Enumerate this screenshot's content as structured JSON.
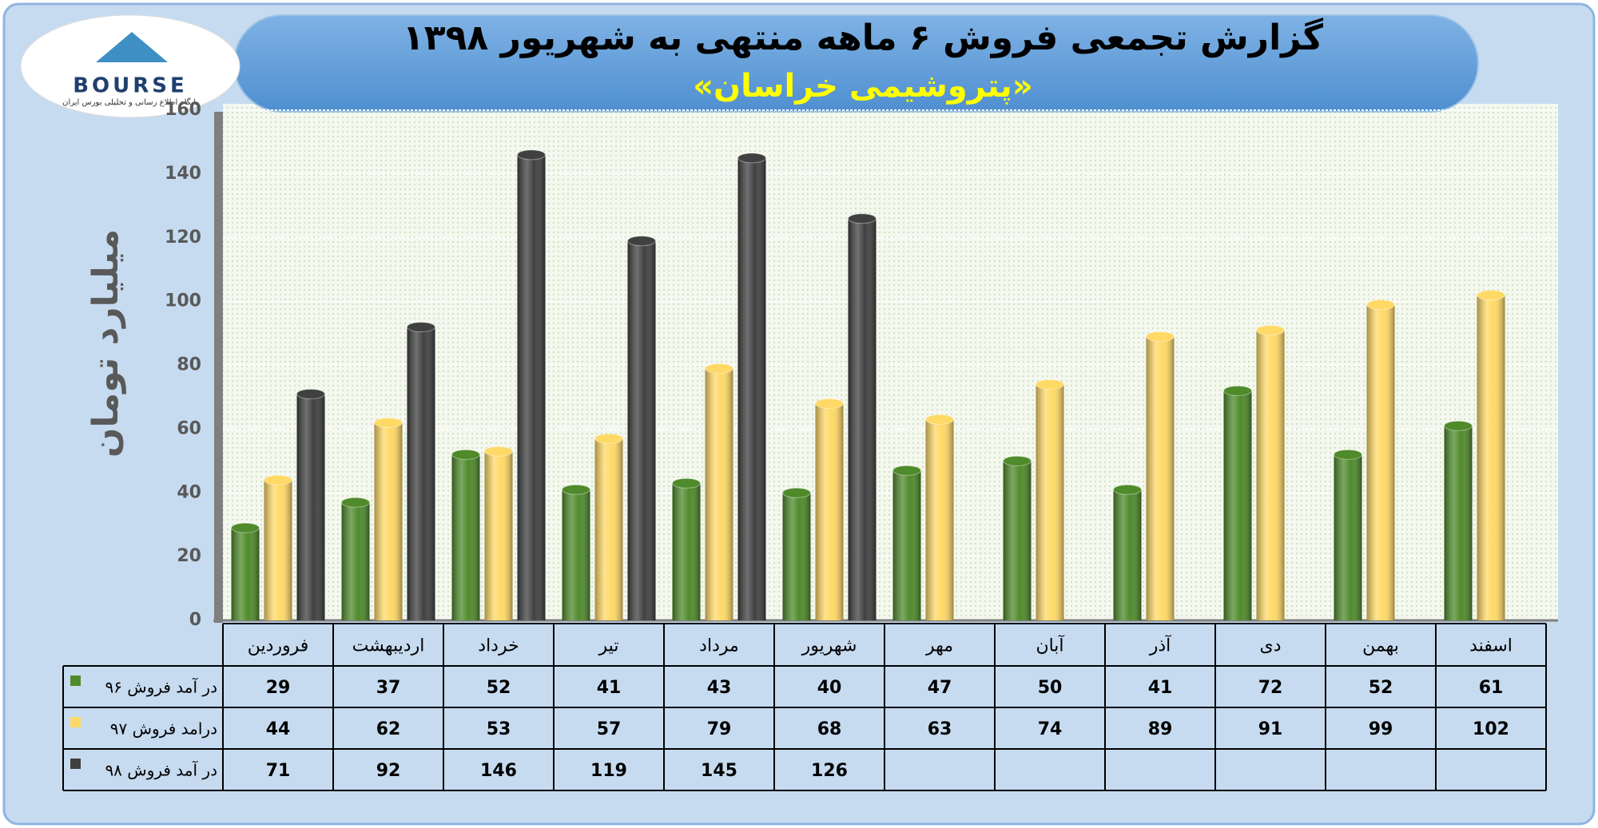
{
  "chart_data": {
    "type": "bar",
    "title": "گزارش تجمعی فروش ۶ ماهه منتهی به شهریور ۱۳۹۸",
    "subtitle": "«پتروشیمی خراسان»",
    "y_label": "میلیارد تومان",
    "logo": {
      "name": "BOURSE",
      "tagline": "پایگاه اطلاع رسانی و تحلیلی بورس ایران"
    },
    "categories": [
      "فروردین",
      "اردیبهشت",
      "خرداد",
      "تیر",
      "مرداد",
      "شهریور",
      "مهر",
      "آبان",
      "آذر",
      "دی",
      "بهمن",
      "اسفند"
    ],
    "series": [
      {
        "name": "در آمد فروش ۹۶",
        "color": "#4f8a2b",
        "values": [
          29,
          37,
          52,
          41,
          43,
          40,
          47,
          50,
          41,
          72,
          52,
          61
        ]
      },
      {
        "name": "درامد فروش ۹۷",
        "color": "#ffd966",
        "values": [
          44,
          62,
          53,
          57,
          79,
          68,
          63,
          74,
          89,
          91,
          99,
          102
        ]
      },
      {
        "name": "در آمد فروش ۹۸",
        "color": "#404040",
        "values": [
          71,
          92,
          146,
          119,
          145,
          126,
          null,
          null,
          null,
          null,
          null,
          null
        ]
      }
    ],
    "ylim": [
      0,
      160
    ],
    "yticks": [
      0,
      20,
      40,
      60,
      80,
      100,
      120,
      140,
      160
    ],
    "grid": true
  }
}
